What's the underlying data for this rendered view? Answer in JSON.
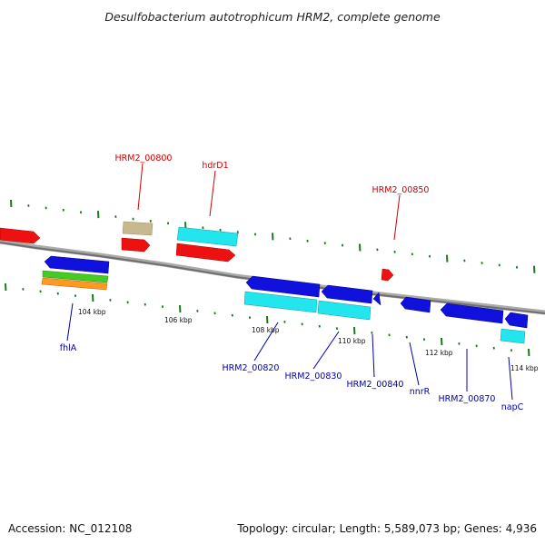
{
  "map": {
    "title": "Desulfobacterium autotrophicum HRM2, complete genome",
    "accession": "Accession: NC_012108",
    "summary": "Topology: circular; Length: 5,589,073 bp; Genes: 4,936",
    "colors": {
      "backbone": "#8c8c8c",
      "tick": "#1a7a1a",
      "forward_cds": "#ee1111",
      "reverse_cds": "#1111dd",
      "hit_cyan": "#22e5ee",
      "khaki": "#c8b890",
      "green": "#44cc22",
      "orange": "#ff9922",
      "label_red": "#cc0000",
      "label_blue": "#0000aa"
    }
  },
  "ticks": [
    {
      "label": "104 kbp"
    },
    {
      "label": "106 kbp"
    },
    {
      "label": "108 kbp"
    },
    {
      "label": "110 kbp"
    },
    {
      "label": "112 kbp"
    },
    {
      "label": "114 kbp"
    }
  ],
  "labels": [
    {
      "text": "HRM2_00800",
      "color": "label_red"
    },
    {
      "text": "hdrD1",
      "color": "label_red"
    },
    {
      "text": "HRM2_00850",
      "color": "label_red"
    },
    {
      "text": "fhlA",
      "color": "label_blue"
    },
    {
      "text": "HRM2_00820",
      "color": "label_blue"
    },
    {
      "text": "HRM2_00830",
      "color": "label_blue"
    },
    {
      "text": "HRM2_00840",
      "color": "label_blue"
    },
    {
      "text": "nnrR",
      "color": "label_blue"
    },
    {
      "text": "HRM2_00870",
      "color": "label_blue"
    },
    {
      "text": "napC",
      "color": "label_blue"
    }
  ]
}
